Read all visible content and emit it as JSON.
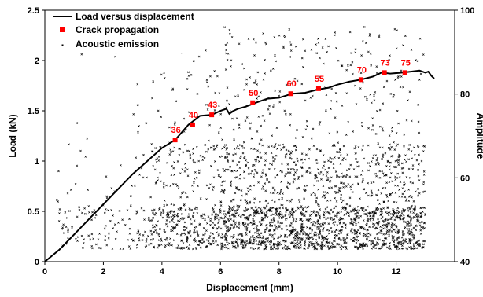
{
  "chart_data": {
    "type": "line+scatter",
    "xlabel": "Displacement (mm)",
    "ylabel": "Load (kN)",
    "y2label": "Amplitude",
    "xlim": [
      0,
      14
    ],
    "ylim": [
      0,
      2.5
    ],
    "y2lim": [
      40,
      100
    ],
    "x_ticks": [
      0,
      2,
      4,
      6,
      8,
      10,
      12
    ],
    "y_ticks": [
      0,
      0.5,
      1,
      1.5,
      2,
      2.5
    ],
    "y2_ticks": [
      40,
      60,
      80,
      100
    ],
    "legend_position": "top-left",
    "grid": false,
    "legend": {
      "line": "Load versus displacement",
      "crack": "Crack propagation",
      "ae": "Acoustic emission"
    },
    "load_curve": {
      "x": [
        0,
        0.5,
        1,
        1.5,
        2,
        2.5,
        3,
        3.5,
        4,
        4.45,
        4.9,
        5.3,
        5.7,
        6.0,
        6.2,
        6.3,
        6.45,
        6.6,
        6.85,
        7.2,
        7.6,
        8.0,
        8.45,
        8.9,
        9.3,
        9.7,
        10.0,
        10.4,
        10.8,
        11.2,
        11.5,
        11.8,
        12.2,
        12.5,
        12.8,
        13.0,
        13.1,
        13.2,
        13.3
      ],
      "y": [
        0,
        0.12,
        0.27,
        0.42,
        0.57,
        0.72,
        0.87,
        1.0,
        1.13,
        1.21,
        1.36,
        1.45,
        1.46,
        1.5,
        1.52,
        1.47,
        1.5,
        1.52,
        1.54,
        1.58,
        1.62,
        1.63,
        1.67,
        1.68,
        1.71,
        1.73,
        1.76,
        1.79,
        1.81,
        1.84,
        1.88,
        1.87,
        1.88,
        1.89,
        1.9,
        1.88,
        1.89,
        1.85,
        1.82
      ]
    },
    "crack_points": [
      {
        "x": 4.45,
        "y": 1.21,
        "label": "36"
      },
      {
        "x": 5.05,
        "y": 1.36,
        "label": "40"
      },
      {
        "x": 5.7,
        "y": 1.46,
        "label": "43"
      },
      {
        "x": 7.1,
        "y": 1.58,
        "label": "50"
      },
      {
        "x": 8.4,
        "y": 1.67,
        "label": "60"
      },
      {
        "x": 9.35,
        "y": 1.72,
        "label": "55"
      },
      {
        "x": 10.8,
        "y": 1.81,
        "label": "70"
      },
      {
        "x": 11.6,
        "y": 1.88,
        "label": "73"
      },
      {
        "x": 12.3,
        "y": 1.88,
        "label": "75"
      }
    ],
    "acoustic_emission_note": "dense AE amplitude points from ~0.4 mm to ~13 mm, amplitude 43-96, densest 43-55"
  }
}
